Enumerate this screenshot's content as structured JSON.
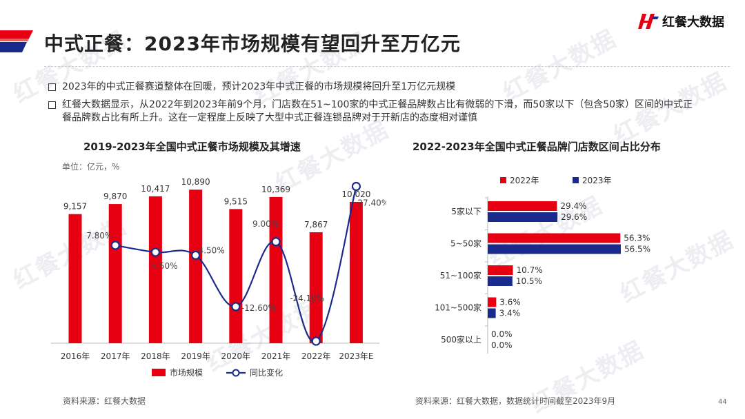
{
  "header": {
    "title": "中式正餐：2023年市场规模有望回升至万亿元",
    "logo_text": "红餐大数据",
    "watermark_text": "红餐大数据"
  },
  "bullets": [
    "2023年的中式正餐赛道整体在回暖，预计2023年中式正餐的市场规模将回升至1万亿元规模",
    "红餐大数据显示，从2022年到2023年前9个月，门店数在51~100家的中式正餐品牌数占比有微弱的下滑，而50家以下（包含50家）区间的中式正餐品牌数占比有所上升。这在一定程度上反映了大型中式正餐连锁品牌对于开新店的态度相对谨慎"
  ],
  "colors": {
    "red": "#e60012",
    "blue": "#1a2a8c",
    "grey": "#bbbbbb"
  },
  "left_panel": {
    "title": "2019-2023年全国中式正餐市场规模及其增速",
    "unit": "单位：亿元，%"
  },
  "right_panel": {
    "title": "2022-2023年全国中式正餐品牌门店数区间占比分布"
  },
  "chart_data": [
    {
      "type": "bar",
      "title": "2019-2023年全国中式正餐市场规模及其增速",
      "unit": "单位：亿元，%",
      "categories": [
        "2016年",
        "2017年",
        "2018年",
        "2019年",
        "2020年",
        "2021年",
        "2022年",
        "2023年E"
      ],
      "series": [
        {
          "name": "市场规模",
          "type": "bar",
          "values": [
            9157,
            9870,
            10417,
            10890,
            9515,
            10369,
            7867,
            10020
          ],
          "labels": [
            "9,157",
            "9,870",
            "10,417",
            "10,890",
            "9,515",
            "10,369",
            "7,867",
            "10,020"
          ]
        },
        {
          "name": "同比变化",
          "type": "line",
          "values": [
            null,
            7.8,
            5.5,
            4.5,
            -12.6,
            9.0,
            -24.1,
            27.4
          ],
          "labels": [
            "",
            "7.80%",
            "5.50%",
            "4.50%",
            "-12.60%",
            "9.00%",
            "-24.10%",
            "27.40%"
          ]
        }
      ],
      "legend": "bottom"
    },
    {
      "type": "bar",
      "orientation": "horizontal",
      "title": "2022-2023年全国中式正餐品牌门店数区间占比分布",
      "categories": [
        "5家以下",
        "5~50家",
        "51~100家",
        "101~500家",
        "500家以上"
      ],
      "series": [
        {
          "name": "2022年",
          "values": [
            29.4,
            56.3,
            10.7,
            3.6,
            0.0
          ],
          "labels": [
            "29.4%",
            "56.3%",
            "10.7%",
            "3.6%",
            "0.0%"
          ]
        },
        {
          "name": "2023年",
          "values": [
            29.6,
            56.5,
            10.5,
            3.4,
            0.0
          ],
          "labels": [
            "29.6%",
            "56.5%",
            "10.5%",
            "3.4%",
            "0.0%"
          ]
        }
      ],
      "legend": "top"
    }
  ],
  "sources": {
    "left": "资料来源：红餐大数据",
    "right": "资料来源：红餐大数据，数据统计时间截至2023年9月"
  },
  "page_number": "44"
}
